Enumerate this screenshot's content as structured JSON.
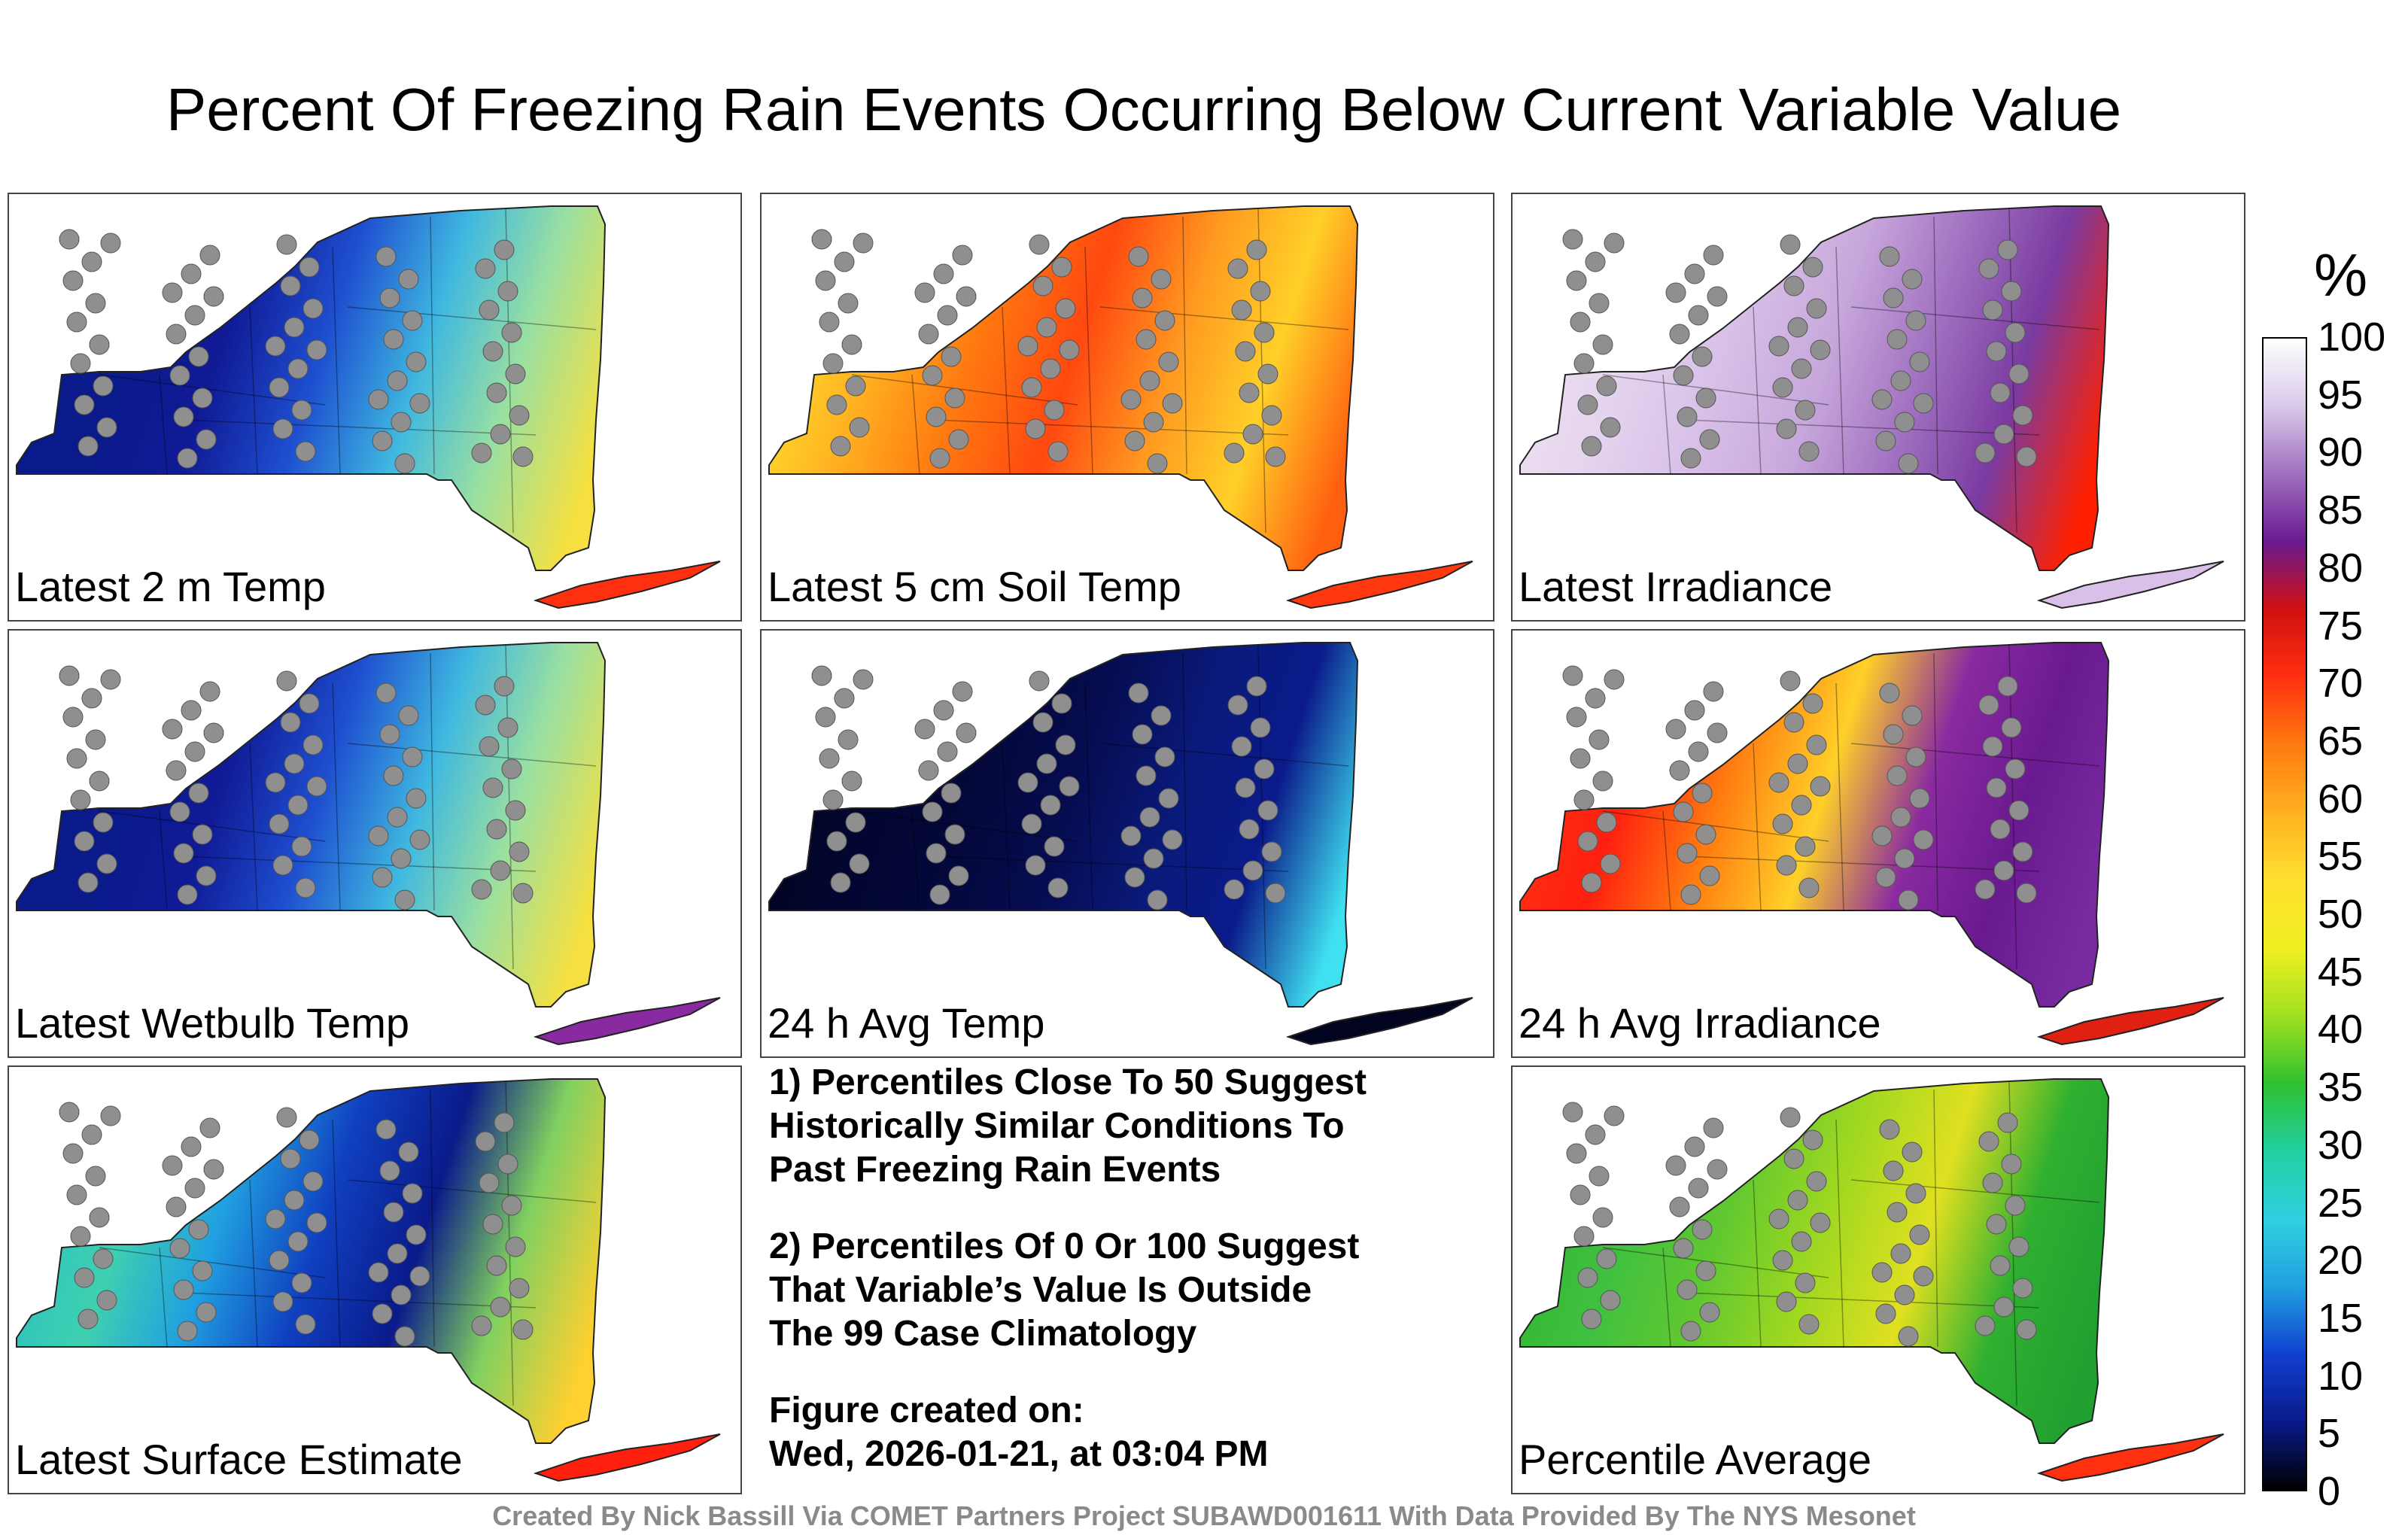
{
  "title": "Percent Of Freezing Rain Events Occurring Below Current Variable Value",
  "panels": [
    {
      "label": "Latest 2 m Temp",
      "colors": [
        "#0a1a8a",
        "#0a1a8a",
        "#101a95",
        "#1e4fd0",
        "#3fb8e0",
        "#9be0a0",
        "#f5e040",
        "#ff3010"
      ]
    },
    {
      "label": "Latest 5 cm Soil Temp",
      "colors": [
        "#ffe030",
        "#ffb020",
        "#ff7a10",
        "#ff4810",
        "#ff9a20",
        "#ffd028",
        "#ff6010",
        "#ff3810"
      ]
    },
    {
      "label": "Latest Irradiance",
      "colors": [
        "#eee0f0",
        "#e4d4ee",
        "#d8c0e8",
        "#c8a8dc",
        "#a070c0",
        "#7a3aa0",
        "#ff2000",
        "#d8c0e8"
      ]
    },
    {
      "label": "Latest Wetbulb Temp",
      "colors": [
        "#0a1a8a",
        "#0a1a8a",
        "#101a95",
        "#1e4fd0",
        "#3fb8e0",
        "#9be0a0",
        "#f5e040",
        "#8a2aa0"
      ]
    },
    {
      "label": "24 h Avg Temp",
      "colors": [
        "#02031e",
        "#030630",
        "#04083a",
        "#060c50",
        "#0a1a7a",
        "#0a1a8a",
        "#3fe0f0",
        "#02031e"
      ]
    },
    {
      "label": "24 h Avg Irradiance",
      "colors": [
        "#ff3010",
        "#ff2010",
        "#ff7a10",
        "#ffd028",
        "#8a2aa0",
        "#6a1a90",
        "#7a2aa0",
        "#e02010"
      ]
    },
    {
      "label": "Latest Surface Estimate",
      "colors": [
        "#2ac0c0",
        "#3fd0b0",
        "#20a0e0",
        "#1040c0",
        "#0a1a8a",
        "#80d060",
        "#ffd030",
        "#ff2010"
      ]
    },
    {
      "label": "Percentile Average",
      "colors": [
        "#30b830",
        "#40c040",
        "#60c830",
        "#a0d820",
        "#e0e020",
        "#30b030",
        "#20a030",
        "#ff3010"
      ]
    }
  ],
  "notes": [
    "1) Percentiles Close To 50 Suggest\nHistorically Similar Conditions To\nPast Freezing Rain Events",
    "2) Percentiles Of 0 Or 100 Suggest\nThat Variable’s Value Is Outside\nThe 99 Case Climatology"
  ],
  "figure_created_label": "Figure created on:",
  "figure_created_value": "Wed, 2026-01-21, at 03:04 PM",
  "footer": "Created By Nick Bassill Via COMET Partners Project SUBAWD001611 With Data Provided By The NYS Mesonet",
  "colorbar": {
    "unit": "%",
    "ticks": [
      "100",
      "95",
      "90",
      "85",
      "80",
      "75",
      "70",
      "65",
      "60",
      "55",
      "50",
      "45",
      "40",
      "35",
      "30",
      "25",
      "20",
      "15",
      "10",
      "5",
      "0"
    ],
    "stops": [
      "#ffffff",
      "#d8c8e8",
      "#a070c0",
      "#6a1a90",
      "#d01010",
      "#ff3010",
      "#ff7a10",
      "#ffb020",
      "#ffe030",
      "#f0f020",
      "#a0e020",
      "#30c030",
      "#20d0a0",
      "#30d0e0",
      "#20a0e0",
      "#1040d0",
      "#0a1a8a",
      "#000000"
    ]
  }
}
